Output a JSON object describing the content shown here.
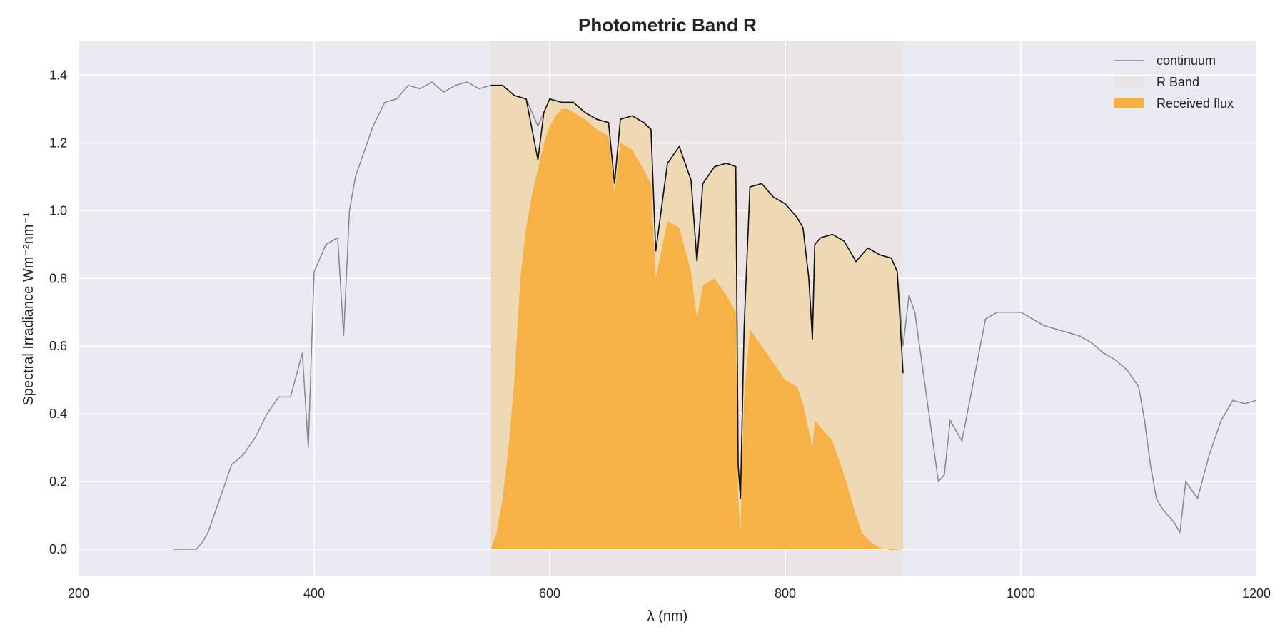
{
  "chart_data": {
    "type": "area",
    "title": "Photometric Band R",
    "xlabel": "λ (nm)",
    "ylabel": "Spectral Irradiance Wm⁻²nm⁻¹",
    "xlim": [
      200,
      1200
    ],
    "ylim": [
      -0.08,
      1.5
    ],
    "xticks": [
      200,
      400,
      600,
      800,
      1000,
      1200
    ],
    "yticks": [
      0.0,
      0.2,
      0.4,
      0.6,
      0.8,
      1.0,
      1.2,
      1.4
    ],
    "grid": true,
    "legend_position": "top-right",
    "band": {
      "name": "R Band",
      "x_range": [
        550,
        900
      ]
    },
    "series": [
      {
        "name": "continuum",
        "kind": "line",
        "color": "#888888",
        "x": [
          280,
          300,
          305,
          310,
          320,
          330,
          340,
          350,
          360,
          370,
          380,
          390,
          395,
          400,
          410,
          420,
          425,
          430,
          435,
          440,
          450,
          460,
          470,
          480,
          490,
          500,
          510,
          520,
          530,
          540,
          550,
          560,
          570,
          580,
          590,
          600,
          610,
          620,
          630,
          640,
          650,
          655,
          660,
          670,
          680,
          686,
          690,
          700,
          710,
          720,
          725,
          730,
          740,
          750,
          758,
          760,
          762,
          765,
          770,
          780,
          790,
          800,
          810,
          815,
          820,
          823,
          825,
          830,
          840,
          850,
          860,
          870,
          880,
          890,
          895,
          900,
          905,
          910,
          920,
          930,
          935,
          940,
          950,
          960,
          970,
          980,
          990,
          1000,
          1010,
          1020,
          1030,
          1040,
          1050,
          1060,
          1070,
          1080,
          1090,
          1100,
          1105,
          1110,
          1115,
          1120,
          1130,
          1135,
          1140,
          1150,
          1160,
          1170,
          1180,
          1190,
          1200
        ],
        "y": [
          0.0,
          0.0,
          0.02,
          0.05,
          0.15,
          0.25,
          0.28,
          0.33,
          0.4,
          0.45,
          0.45,
          0.58,
          0.3,
          0.82,
          0.9,
          0.92,
          0.63,
          1.0,
          1.1,
          1.15,
          1.25,
          1.32,
          1.33,
          1.37,
          1.36,
          1.38,
          1.35,
          1.37,
          1.38,
          1.36,
          1.37,
          1.37,
          1.34,
          1.33,
          1.25,
          1.33,
          1.32,
          1.32,
          1.29,
          1.27,
          1.26,
          1.08,
          1.27,
          1.28,
          1.26,
          1.24,
          0.88,
          1.14,
          1.19,
          1.09,
          0.85,
          1.08,
          1.13,
          1.14,
          1.13,
          0.25,
          0.15,
          0.65,
          1.07,
          1.08,
          1.04,
          1.02,
          0.98,
          0.95,
          0.8,
          0.62,
          0.9,
          0.92,
          0.93,
          0.91,
          0.85,
          0.89,
          0.87,
          0.86,
          0.82,
          0.6,
          0.75,
          0.7,
          0.45,
          0.2,
          0.22,
          0.38,
          0.32,
          0.5,
          0.68,
          0.7,
          0.7,
          0.7,
          0.68,
          0.66,
          0.65,
          0.64,
          0.63,
          0.61,
          0.58,
          0.56,
          0.53,
          0.48,
          0.38,
          0.25,
          0.15,
          0.12,
          0.08,
          0.05,
          0.2,
          0.15,
          0.28,
          0.38,
          0.44,
          0.43,
          0.44
        ]
      },
      {
        "name": "band_spectrum",
        "kind": "line",
        "color": "#111111",
        "x": [
          550,
          560,
          570,
          580,
          590,
          595,
          600,
          610,
          620,
          630,
          640,
          650,
          655,
          660,
          670,
          680,
          686,
          690,
          700,
          710,
          720,
          725,
          730,
          740,
          750,
          758,
          760,
          762,
          765,
          770,
          780,
          790,
          800,
          810,
          815,
          820,
          823,
          825,
          830,
          840,
          850,
          860,
          870,
          880,
          890,
          895,
          900
        ],
        "y": [
          1.37,
          1.37,
          1.34,
          1.33,
          1.15,
          1.29,
          1.33,
          1.32,
          1.32,
          1.29,
          1.27,
          1.26,
          1.08,
          1.27,
          1.28,
          1.26,
          1.24,
          0.88,
          1.14,
          1.19,
          1.09,
          0.85,
          1.08,
          1.13,
          1.14,
          1.13,
          0.25,
          0.15,
          0.65,
          1.07,
          1.08,
          1.04,
          1.02,
          0.98,
          0.95,
          0.8,
          0.62,
          0.9,
          0.92,
          0.93,
          0.91,
          0.85,
          0.89,
          0.87,
          0.86,
          0.82,
          0.52
        ]
      },
      {
        "name": "Received flux",
        "kind": "area",
        "color": "#f5b041",
        "x": [
          550,
          555,
          560,
          565,
          570,
          575,
          580,
          585,
          590,
          595,
          600,
          605,
          610,
          615,
          620,
          630,
          640,
          650,
          655,
          660,
          670,
          680,
          686,
          690,
          700,
          710,
          720,
          725,
          730,
          740,
          750,
          758,
          760,
          762,
          765,
          770,
          780,
          790,
          800,
          810,
          815,
          820,
          823,
          825,
          830,
          840,
          850,
          860,
          865,
          870,
          875,
          880,
          890,
          900
        ],
        "y": [
          0.0,
          0.05,
          0.15,
          0.3,
          0.5,
          0.8,
          0.95,
          1.05,
          1.12,
          1.2,
          1.25,
          1.28,
          1.3,
          1.3,
          1.29,
          1.27,
          1.24,
          1.22,
          1.05,
          1.2,
          1.18,
          1.12,
          1.08,
          0.8,
          0.97,
          0.95,
          0.82,
          0.68,
          0.78,
          0.8,
          0.75,
          0.7,
          0.15,
          0.05,
          0.45,
          0.65,
          0.6,
          0.55,
          0.5,
          0.48,
          0.43,
          0.35,
          0.3,
          0.38,
          0.36,
          0.32,
          0.22,
          0.1,
          0.05,
          0.03,
          0.015,
          0.005,
          -0.003,
          0.0
        ]
      }
    ],
    "legend": [
      {
        "label": "continuum",
        "kind": "line",
        "color": "#888888"
      },
      {
        "label": "R Band",
        "kind": "patch",
        "color": "#ebe4e4"
      },
      {
        "label": "Received flux",
        "kind": "patch",
        "color": "#f5b041"
      }
    ]
  }
}
